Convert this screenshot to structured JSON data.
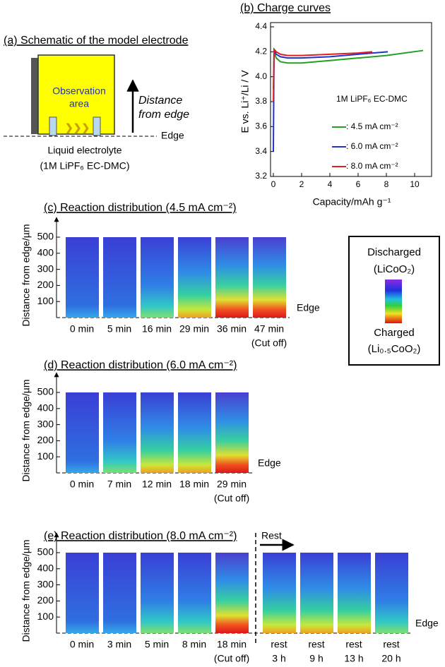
{
  "schematic": {
    "title": "(a) Schematic of the model electrode",
    "area_label": [
      "Observation",
      "area"
    ],
    "arrow_label": [
      "Distance",
      "from edge"
    ],
    "edge_label": "Edge",
    "electrolyte": [
      "Liquid electrolyte",
      "(1M LiPF₆ EC-DMC)"
    ]
  },
  "chart_data": {
    "type": "line",
    "title": "(b) Charge curves",
    "x_label": "Capacity/mAh g⁻¹",
    "y_label": "E vs. Li⁺/Li / V",
    "annotation": "1M LiPF₆ EC-DMC",
    "xlim": [
      0,
      11
    ],
    "xticks": [
      0,
      2,
      4,
      6,
      8,
      10
    ],
    "ylim": [
      3.2,
      4.4
    ],
    "yticks": [
      3.2,
      3.4,
      3.6,
      3.8,
      {
        "value": 4,
        "label": "4.0"
      },
      4.2,
      4.4
    ],
    "series": [
      {
        "name": ": 4.5 mA cm⁻²",
        "color": "#22a022",
        "x": [
          0,
          0.05,
          0.2,
          0.5,
          1,
          2,
          4,
          6,
          8,
          10.6
        ],
        "values": [
          3.9,
          4.2,
          4.15,
          4.12,
          4.11,
          4.11,
          4.13,
          4.15,
          4.17,
          4.21
        ]
      },
      {
        "name": ": 6.0 mA cm⁻²",
        "color": "#2233cc",
        "x": [
          0,
          0.05,
          0.2,
          0.5,
          1,
          2,
          4,
          6,
          8.1
        ],
        "values": [
          3.4,
          4.22,
          4.18,
          4.16,
          4.15,
          4.15,
          4.16,
          4.18,
          4.2
        ]
      },
      {
        "name": ": 8.0 mA cm⁻²",
        "color": "#e02020",
        "x": [
          0,
          0.05,
          0.2,
          0.5,
          1,
          2,
          4,
          6,
          7
        ],
        "values": [
          3.8,
          4.22,
          4.2,
          4.18,
          4.17,
          4.17,
          4.18,
          4.19,
          4.2
        ]
      }
    ]
  },
  "maps": [
    {
      "title": "(c) Reaction distribution (4.5 mA cm⁻²)",
      "y_label": "Distance from edge/µm",
      "ylim": [
        0,
        500
      ],
      "yticks": [
        100,
        200,
        300,
        400,
        500
      ],
      "edge_label": "Edge",
      "frames": [
        {
          "label": "0 min"
        },
        {
          "label": "5 min"
        },
        {
          "label": "16 min"
        },
        {
          "label": "29 min"
        },
        {
          "label": "36 min"
        },
        {
          "label": "47 min",
          "note": "(Cut off)"
        }
      ]
    },
    {
      "title": "(d) Reaction distribution (6.0 mA cm⁻²)",
      "y_label": "Distance from edge/µm",
      "ylim": [
        0,
        500
      ],
      "yticks": [
        100,
        200,
        300,
        400,
        500
      ],
      "edge_label": "Edge",
      "frames": [
        {
          "label": "0 min"
        },
        {
          "label": "7 min"
        },
        {
          "label": "12 min"
        },
        {
          "label": "18 min"
        },
        {
          "label": "29 min",
          "note": "(Cut off)"
        }
      ]
    },
    {
      "title": "(e) Reaction distribution (8.0 mA cm⁻²)",
      "y_label": "Distance from edge/µm",
      "ylim": [
        0,
        500
      ],
      "yticks": [
        100,
        200,
        300,
        400,
        500
      ],
      "edge_label": "Edge",
      "rest_label": "Rest",
      "frames": [
        {
          "label": "0 min"
        },
        {
          "label": "3 min"
        },
        {
          "label": "5 min"
        },
        {
          "label": "8 min"
        },
        {
          "label": "18 min",
          "note": "(Cut off)"
        },
        {
          "label": "rest",
          "note": "3 h"
        },
        {
          "label": "rest",
          "note": "9 h"
        },
        {
          "label": "rest",
          "note": "13 h"
        },
        {
          "label": "rest",
          "note": "20 h"
        }
      ]
    }
  ],
  "colorbar": {
    "top": [
      "Discharged",
      "(LiCoO₂)"
    ],
    "bottom": [
      "Charged",
      "(Li₀.₅CoO₂)"
    ]
  }
}
